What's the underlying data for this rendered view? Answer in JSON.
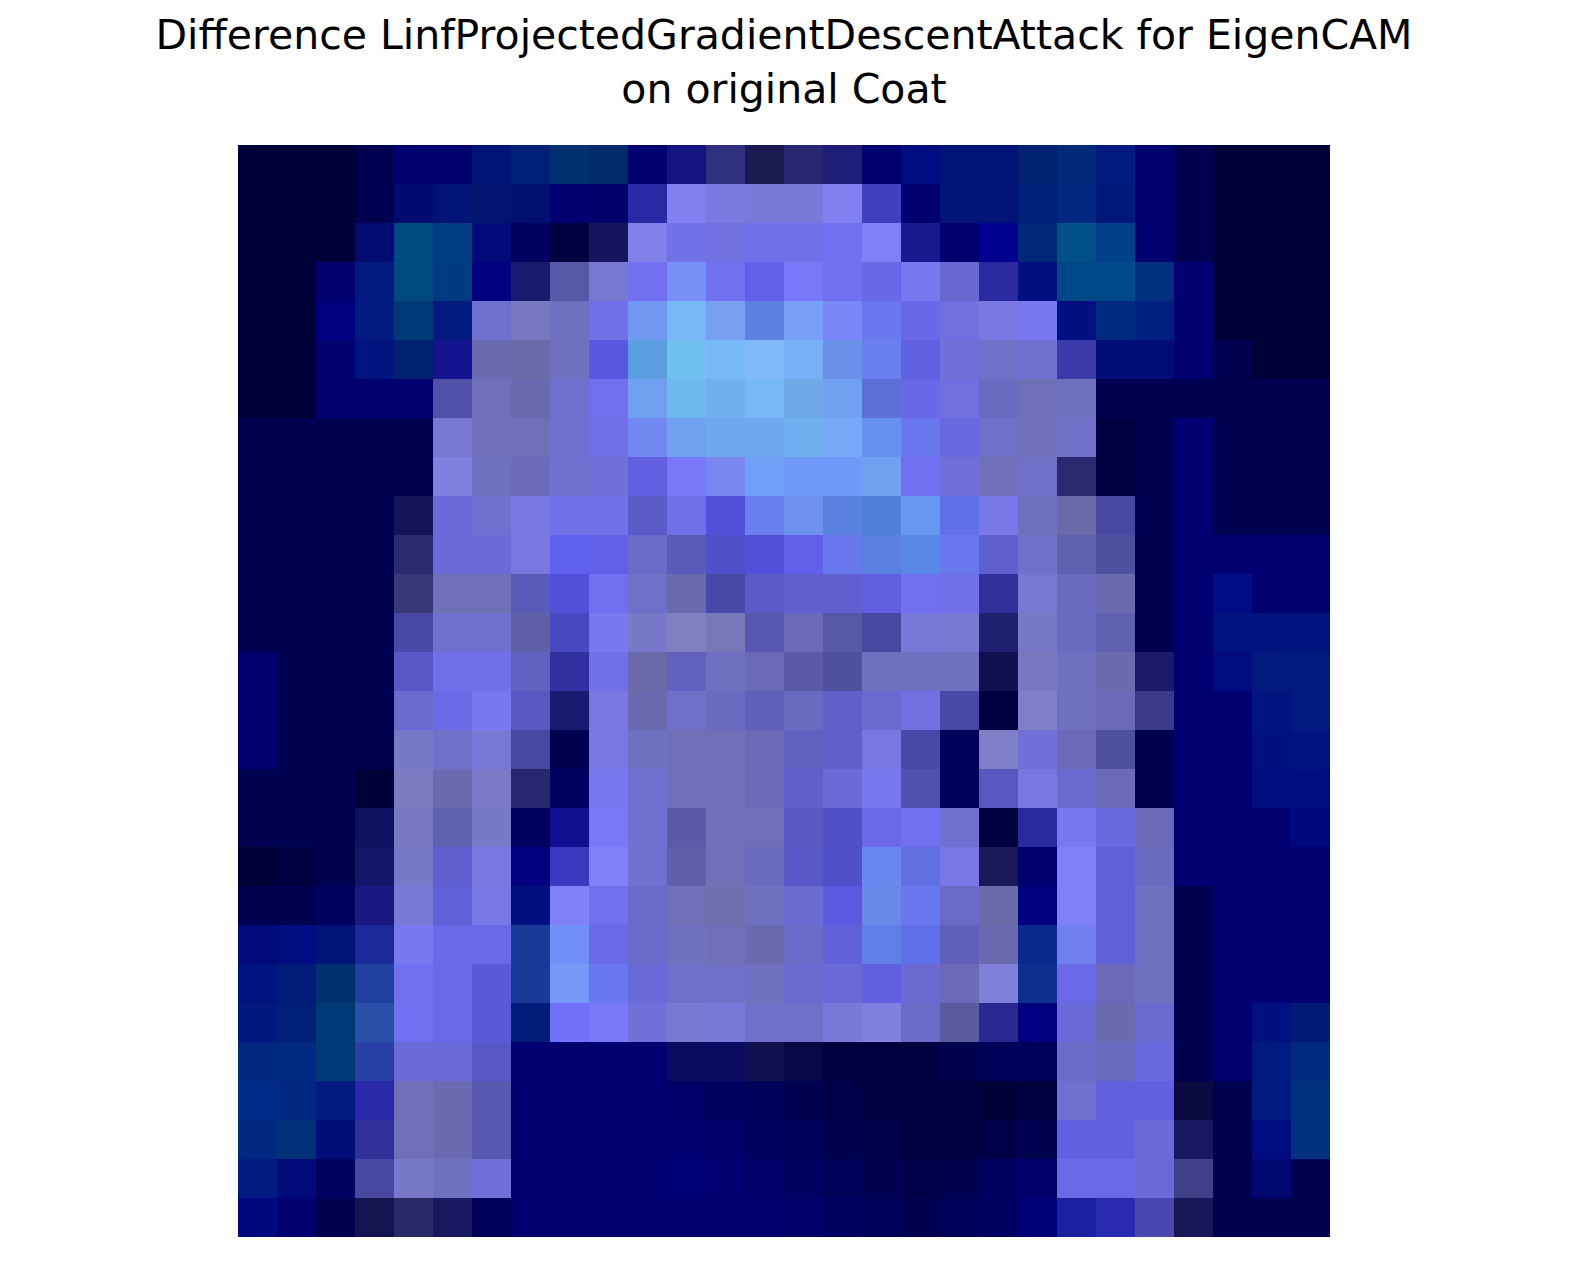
{
  "chart_data": {
    "type": "image",
    "title": "Difference LinfProjectedGradientDescentAttack for EigenCAM\non original Coat",
    "tick_labels": false,
    "cells": [
      [
        "#000038",
        "#000038",
        "#000038",
        "#000050",
        "#000070",
        "#000070",
        "#001478",
        "#002078",
        "#003070",
        "#002a6a",
        "#000070",
        "#141480",
        "#303080",
        "#1a1a50",
        "#282870",
        "#1e1e78",
        "#000070",
        "#000c80",
        "#001478",
        "#001478",
        "#002070",
        "#002a78",
        "#001a80",
        "#000070",
        "#000050",
        "#000038",
        "#000038",
        "#000038"
      ],
      [
        "#000038",
        "#000038",
        "#000038",
        "#000050",
        "#000a70",
        "#001478",
        "#001470",
        "#001070",
        "#000070",
        "#00006a",
        "#2a2aa8",
        "#8080f0",
        "#7a7ae0",
        "#7878d8",
        "#7878d8",
        "#8080f0",
        "#4040c0",
        "#000070",
        "#001478",
        "#001478",
        "#002078",
        "#002880",
        "#001878",
        "#000070",
        "#000050",
        "#000038",
        "#000038",
        "#000038"
      ],
      [
        "#000038",
        "#000038",
        "#000038",
        "#000c70",
        "#004880",
        "#003c80",
        "#000a78",
        "#000060",
        "#000040",
        "#141460",
        "#8080e8",
        "#7070e8",
        "#7070e0",
        "#7070e8",
        "#7070e8",
        "#7070f0",
        "#8080f8",
        "#1a1a90",
        "#000070",
        "#000090",
        "#002878",
        "#005088",
        "#004088",
        "#000070",
        "#000050",
        "#000038",
        "#000038",
        "#000038"
      ],
      [
        "#000038",
        "#000038",
        "#000070",
        "#001a80",
        "#004880",
        "#003a80",
        "#000080",
        "#1a1a70",
        "#5858a8",
        "#7878d0",
        "#7070f0",
        "#7890f8",
        "#7070f0",
        "#6060e8",
        "#7878f8",
        "#7070f0",
        "#6868e8",
        "#7878f0",
        "#6868d0",
        "#2a2aa0",
        "#001080",
        "#004888",
        "#004888",
        "#003080",
        "#000070",
        "#000038",
        "#000038",
        "#000038"
      ],
      [
        "#000038",
        "#000038",
        "#000080",
        "#001c80",
        "#003878",
        "#001a80",
        "#7070d0",
        "#7878c0",
        "#7070c0",
        "#7070e8",
        "#7098f0",
        "#78b8f8",
        "#78a0f0",
        "#5a80e0",
        "#78a0f8",
        "#7888f8",
        "#6a78f0",
        "#6868e8",
        "#7070e0",
        "#7878e0",
        "#7878f0",
        "#001080",
        "#002a80",
        "#002080",
        "#000070",
        "#000038",
        "#000038",
        "#000038"
      ],
      [
        "#000038",
        "#000038",
        "#000070",
        "#001480",
        "#002070",
        "#141490",
        "#6a6ab0",
        "#6a6aa8",
        "#7070c0",
        "#5858e0",
        "#5a9ee0",
        "#70c0f0",
        "#78b8f8",
        "#80b8f8",
        "#78b0f8",
        "#6a90e8",
        "#6a80f0",
        "#6060e0",
        "#7070d8",
        "#7070c8",
        "#7070d0",
        "#3a3aa8",
        "#000c78",
        "#000c78",
        "#000070",
        "#000050",
        "#000038",
        "#000038"
      ],
      [
        "#000038",
        "#000038",
        "#000070",
        "#000070",
        "#000070",
        "#5050a8",
        "#7070b8",
        "#6a6ab0",
        "#7070d0",
        "#7070f0",
        "#70a0f0",
        "#70b8f0",
        "#70b0f0",
        "#78b8f8",
        "#70a8e8",
        "#70a0f0",
        "#5a70d8",
        "#6868e8",
        "#7070e0",
        "#6a6ac0",
        "#7070b8",
        "#7070c0",
        "#000050",
        "#000050",
        "#000050",
        "#000050",
        "#000050",
        "#000050"
      ],
      [
        "#000050",
        "#000050",
        "#000050",
        "#000050",
        "#000050",
        "#7878d0",
        "#7070b8",
        "#7070b8",
        "#7070d0",
        "#7070e8",
        "#7088f0",
        "#70a0f0",
        "#70a8f0",
        "#70a8f0",
        "#70b0f0",
        "#78a8f8",
        "#6890f0",
        "#6a78f0",
        "#6868e0",
        "#7070c8",
        "#7070b8",
        "#7070c8",
        "#000040",
        "#000050",
        "#000070",
        "#000050",
        "#000050",
        "#000050"
      ],
      [
        "#000050",
        "#000050",
        "#000050",
        "#000050",
        "#000050",
        "#8080e0",
        "#7070c0",
        "#6a6ab8",
        "#7070d0",
        "#7070d8",
        "#6060e0",
        "#7878f8",
        "#7888f0",
        "#70a0f8",
        "#7098f8",
        "#7098f8",
        "#70a0f0",
        "#7070f0",
        "#7070d8",
        "#7070b8",
        "#7070c8",
        "#2a2a70",
        "#000040",
        "#000050",
        "#000070",
        "#000050",
        "#000050",
        "#000050"
      ],
      [
        "#000050",
        "#000050",
        "#000050",
        "#000050",
        "#141458",
        "#6a6ad8",
        "#7070d0",
        "#7878e0",
        "#7070e8",
        "#7070e8",
        "#5a5ac8",
        "#7070e8",
        "#5050d8",
        "#6a80f0",
        "#7090f0",
        "#5a80e0",
        "#4e80d8",
        "#6898f0",
        "#6070e8",
        "#7878e8",
        "#7070c0",
        "#6a6aa8",
        "#4848a0",
        "#000050",
        "#000070",
        "#000050",
        "#000050",
        "#000050"
      ],
      [
        "#000050",
        "#000050",
        "#000050",
        "#000050",
        "#2a2a70",
        "#6a6ad8",
        "#6a6ad8",
        "#7878e0",
        "#6060f0",
        "#6060e8",
        "#6a6ac8",
        "#5a5ab8",
        "#5050c8",
        "#5050d8",
        "#6060e8",
        "#6a78f0",
        "#5a80e0",
        "#5a88e8",
        "#6a78f0",
        "#6060d0",
        "#7070c8",
        "#6060b0",
        "#5050a0",
        "#000050",
        "#000070",
        "#000070",
        "#000070",
        "#000070"
      ],
      [
        "#000050",
        "#000050",
        "#000050",
        "#000050",
        "#383878",
        "#7070b8",
        "#7070b8",
        "#5a5ab8",
        "#5050d8",
        "#7070f0",
        "#7070c8",
        "#6a6ab0",
        "#4848a8",
        "#5a5ac8",
        "#6060d0",
        "#6060d0",
        "#6060e0",
        "#7070f0",
        "#7070e8",
        "#303098",
        "#7878d0",
        "#6a6ac0",
        "#6a6ab0",
        "#000050",
        "#000070",
        "#000c88",
        "#000070",
        "#000070"
      ],
      [
        "#000050",
        "#000050",
        "#000050",
        "#000050",
        "#4848a8",
        "#7070d0",
        "#7070d0",
        "#6060a8",
        "#4848c0",
        "#7878f0",
        "#7878c8",
        "#8080c0",
        "#7878b8",
        "#5858b0",
        "#6a6ab8",
        "#5858a8",
        "#4848a0",
        "#7878d8",
        "#7878d0",
        "#202070",
        "#7878c8",
        "#6a6ac0",
        "#6060b0",
        "#000050",
        "#000070",
        "#001480",
        "#001480",
        "#001480"
      ],
      [
        "#000070",
        "#000050",
        "#000050",
        "#000050",
        "#5858c8",
        "#7070e8",
        "#7070e8",
        "#6060c0",
        "#3030a0",
        "#7070e8",
        "#6a6aa8",
        "#6060c0",
        "#7070c0",
        "#6a6ab8",
        "#5a5aa8",
        "#5050a0",
        "#7070c0",
        "#7070c0",
        "#7070c0",
        "#101050",
        "#7878c0",
        "#7070c0",
        "#6a6ab0",
        "#1a1a68",
        "#000070",
        "#000c80",
        "#001a80",
        "#001a80"
      ],
      [
        "#000070",
        "#000050",
        "#000050",
        "#000050",
        "#6a6ad0",
        "#6a6ae8",
        "#7878f0",
        "#5858c0",
        "#1a1a70",
        "#7878e0",
        "#6a6ab0",
        "#7070c8",
        "#6a6ac0",
        "#6060b8",
        "#6a6ac0",
        "#6060c8",
        "#6a6ad0",
        "#7070e0",
        "#4848a8",
        "#000040",
        "#8080c8",
        "#7070c0",
        "#6a6ab8",
        "#3a3a88",
        "#000070",
        "#000070",
        "#001480",
        "#001a80"
      ],
      [
        "#000070",
        "#000050",
        "#000050",
        "#000050",
        "#7878c8",
        "#7070c8",
        "#7878d8",
        "#4848a0",
        "#000050",
        "#7878e0",
        "#7070c0",
        "#7070b8",
        "#7070b8",
        "#6a6ab8",
        "#6060c0",
        "#6060c8",
        "#7878e0",
        "#4848a8",
        "#000058",
        "#8080c8",
        "#7070d8",
        "#6a6ab8",
        "#5050a0",
        "#000050",
        "#000070",
        "#000070",
        "#001080",
        "#001480"
      ],
      [
        "#000050",
        "#000050",
        "#000050",
        "#000038",
        "#7a7ac0",
        "#6a6ab0",
        "#7a7ac8",
        "#282870",
        "#000060",
        "#7878f0",
        "#7070d0",
        "#7070b8",
        "#7070b8",
        "#6a6ab8",
        "#6060c8",
        "#6a6ad8",
        "#7878f0",
        "#5050b0",
        "#000058",
        "#5858c0",
        "#7878e0",
        "#6a6ad0",
        "#6a6ab8",
        "#000050",
        "#000070",
        "#000070",
        "#000c80",
        "#000c80"
      ],
      [
        "#000050",
        "#000050",
        "#000050",
        "#101060",
        "#7878c0",
        "#6060b0",
        "#7878c8",
        "#000060",
        "#101090",
        "#7878f8",
        "#7070d0",
        "#5a5aa8",
        "#7070b8",
        "#7070b8",
        "#5858c0",
        "#5050c8",
        "#6a6ae8",
        "#7070f0",
        "#7070d0",
        "#000040",
        "#2a2aa0",
        "#7878f0",
        "#6a6ae0",
        "#6a6ab8",
        "#000070",
        "#000070",
        "#000070",
        "#000880"
      ],
      [
        "#000038",
        "#000040",
        "#000050",
        "#141468",
        "#7878c8",
        "#6060d0",
        "#7878e0",
        "#000080",
        "#3a3ac0",
        "#8080f8",
        "#7070d0",
        "#6060a8",
        "#7070b8",
        "#6a6ac0",
        "#5858c8",
        "#5050c8",
        "#6a88f0",
        "#6070e0",
        "#7878e8",
        "#1a1a58",
        "#000070",
        "#8080f8",
        "#6060d8",
        "#6a6ac0",
        "#000070",
        "#000070",
        "#000070",
        "#000070"
      ],
      [
        "#000050",
        "#000050",
        "#000060",
        "#181880",
        "#7878d8",
        "#6060d8",
        "#7878e8",
        "#001080",
        "#8080f8",
        "#7070f0",
        "#6a6ac8",
        "#7070b8",
        "#7070b0",
        "#7070c0",
        "#6a6ad0",
        "#5a5ae0",
        "#6a88e8",
        "#6a78f0",
        "#6a6ac8",
        "#6a6aa8",
        "#000080",
        "#8080f8",
        "#6060d8",
        "#7070c0",
        "#000050",
        "#000070",
        "#000070",
        "#000070"
      ],
      [
        "#000a78",
        "#000c80",
        "#001478",
        "#1a2a98",
        "#7878f0",
        "#6a6ae8",
        "#6a6ae8",
        "#1a3a98",
        "#7090f8",
        "#6a6ae8",
        "#6a6ac8",
        "#7070c0",
        "#7070b8",
        "#6a6ab0",
        "#6a6ac8",
        "#6060d8",
        "#6080e8",
        "#6070e8",
        "#6060b8",
        "#6a6ab0",
        "#0a2a90",
        "#7080f0",
        "#6060d8",
        "#7070c0",
        "#000050",
        "#000070",
        "#000070",
        "#000070"
      ],
      [
        "#001480",
        "#001c78",
        "#003070",
        "#2040a0",
        "#7070f0",
        "#6a6ae8",
        "#5a5ad8",
        "#1a3a98",
        "#7898f8",
        "#6a78f0",
        "#6a6ad8",
        "#7070c8",
        "#7070c8",
        "#7070c0",
        "#6a6ad0",
        "#6a6ad8",
        "#6060e0",
        "#6a6ad0",
        "#6a6ab8",
        "#8080d8",
        "#103090",
        "#6a6ae8",
        "#6a6ab8",
        "#7070c0",
        "#000050",
        "#000070",
        "#000070",
        "#000070"
      ],
      [
        "#001880",
        "#002078",
        "#003878",
        "#2850a8",
        "#7070f0",
        "#6a6ae8",
        "#5a5ad8",
        "#001c78",
        "#7070f8",
        "#7878f8",
        "#7070d8",
        "#7878d0",
        "#7878d8",
        "#7070c8",
        "#7070c8",
        "#7878d8",
        "#8080e0",
        "#6a6ac8",
        "#5a5aa0",
        "#282890",
        "#000080",
        "#6a6ad8",
        "#6a6ab0",
        "#6a6ad0",
        "#000050",
        "#000070",
        "#001080",
        "#001a78"
      ],
      [
        "#002880",
        "#002a80",
        "#003878",
        "#2840a8",
        "#6a6ad8",
        "#6a6ad8",
        "#5858c8",
        "#000070",
        "#000070",
        "#000070",
        "#000070",
        "#0a0a60",
        "#0a0a60",
        "#101050",
        "#080848",
        "#000040",
        "#000040",
        "#000040",
        "#000050",
        "#000058",
        "#000058",
        "#6a6ac8",
        "#6a6ac0",
        "#6a6ae0",
        "#000050",
        "#000070",
        "#001a80",
        "#002a80"
      ],
      [
        "#002a88",
        "#002880",
        "#001a80",
        "#2828a8",
        "#7070b8",
        "#6a6ab0",
        "#5858b0",
        "#000070",
        "#000070",
        "#000070",
        "#000070",
        "#000068",
        "#000060",
        "#000058",
        "#000050",
        "#000048",
        "#000040",
        "#000040",
        "#000040",
        "#000038",
        "#000040",
        "#7070d0",
        "#6060e0",
        "#6060e0",
        "#0a0a40",
        "#000050",
        "#001a80",
        "#003080"
      ],
      [
        "#002880",
        "#003078",
        "#000c78",
        "#303098",
        "#7070b8",
        "#6a6ab0",
        "#5858b0",
        "#000070",
        "#000070",
        "#000070",
        "#000070",
        "#000070",
        "#000068",
        "#000060",
        "#000058",
        "#000050",
        "#000048",
        "#000040",
        "#000040",
        "#000048",
        "#000050",
        "#6060e0",
        "#6060e0",
        "#6a6ad8",
        "#181860",
        "#000050",
        "#000c80",
        "#003080"
      ],
      [
        "#001a80",
        "#000a78",
        "#000060",
        "#4848a0",
        "#7878c8",
        "#7070c0",
        "#7070d8",
        "#000070",
        "#000070",
        "#000070",
        "#000070",
        "#000078",
        "#000070",
        "#000068",
        "#000060",
        "#000058",
        "#000050",
        "#000048",
        "#000050",
        "#000060",
        "#000068",
        "#6a6ae8",
        "#6a6ae8",
        "#6a6ad8",
        "#404088",
        "#000050",
        "#000870",
        "#000050"
      ],
      [
        "#000880",
        "#000070",
        "#000050",
        "#141450",
        "#2a2a68",
        "#181860",
        "#000058",
        "#000070",
        "#000070",
        "#000070",
        "#000070",
        "#000070",
        "#000070",
        "#000070",
        "#000068",
        "#000060",
        "#000058",
        "#000050",
        "#000058",
        "#000060",
        "#000078",
        "#1a20a0",
        "#2a2ab0",
        "#4848b0",
        "#181858",
        "#000050",
        "#000050",
        "#000050"
      ]
    ]
  }
}
